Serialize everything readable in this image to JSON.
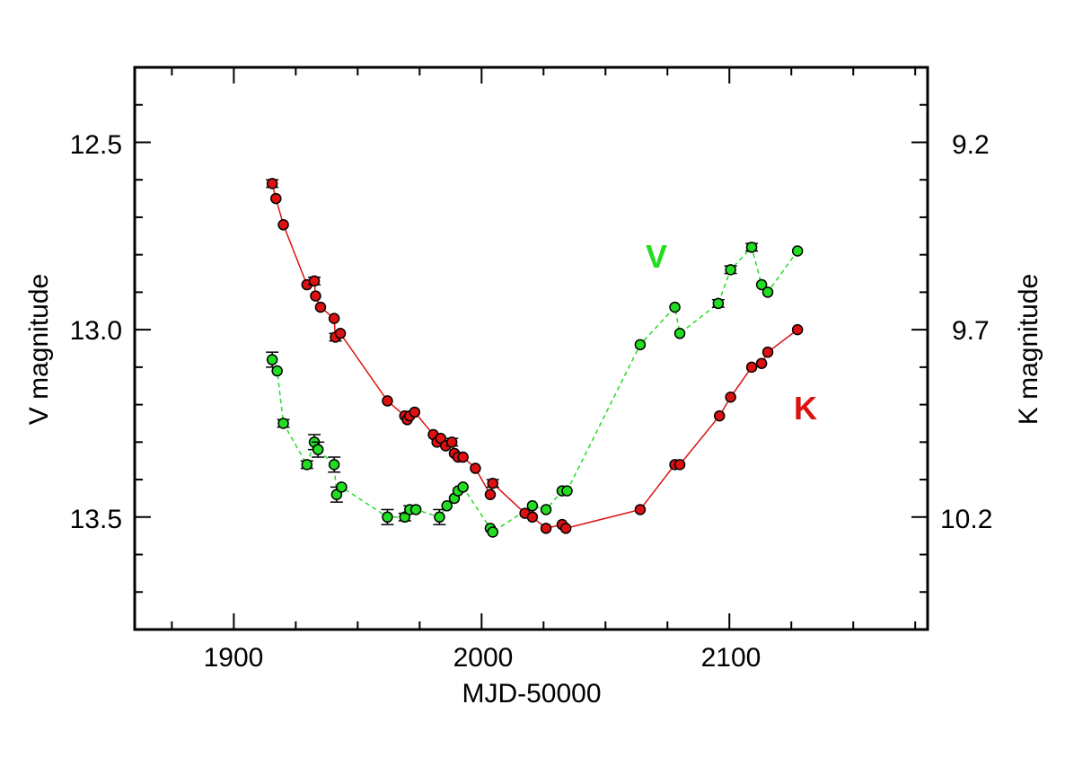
{
  "chart_data": {
    "type": "scatter",
    "title": "",
    "xlabel": "MJD-50000",
    "ylabel_left": "V magnitude",
    "ylabel_right": "K magnitude",
    "xlim": [
      1860,
      2180
    ],
    "ylim_left": [
      12.3,
      13.8
    ],
    "ylim_left_inverted": true,
    "ylim_right": [
      9.0,
      10.5
    ],
    "ylim_right_inverted": true,
    "x_ticks": [
      1900,
      2000,
      2100
    ],
    "x_tick_labels": [
      "1900",
      "2000",
      "2100"
    ],
    "y_left_ticks": [
      12.5,
      13.0,
      13.5
    ],
    "y_left_tick_labels": [
      "12.5",
      "13.0",
      "13.5"
    ],
    "y_right_ticks": [
      9.2,
      9.7,
      10.2
    ],
    "y_right_tick_labels": [
      "9.2",
      "9.7",
      "10.2"
    ],
    "grid": false,
    "colors": {
      "V": "#22dd22",
      "K": "#dd1111",
      "marker_edge": "#000000"
    },
    "series": [
      {
        "name": "V",
        "axis": "left",
        "line_style": "dashed",
        "label_position": "upper-right",
        "points": [
          {
            "x": 1915.5,
            "y": 13.08,
            "err": 0.02
          },
          {
            "x": 1917.5,
            "y": 13.11,
            "err": 0.0
          },
          {
            "x": 1920.0,
            "y": 13.25,
            "err": 0.01
          },
          {
            "x": 1929.5,
            "y": 13.36,
            "err": 0.01
          },
          {
            "x": 1932.5,
            "y": 13.3,
            "err": 0.02
          },
          {
            "x": 1934.0,
            "y": 13.32,
            "err": 0.02
          },
          {
            "x": 1940.5,
            "y": 13.36,
            "err": 0.02
          },
          {
            "x": 1941.5,
            "y": 13.44,
            "err": 0.02
          },
          {
            "x": 1943.5,
            "y": 13.42,
            "err": 0.0
          },
          {
            "x": 1962.0,
            "y": 13.5,
            "err": 0.02
          },
          {
            "x": 1969.0,
            "y": 13.5,
            "err": 0.01
          },
          {
            "x": 1971.0,
            "y": 13.48,
            "err": 0.01
          },
          {
            "x": 1973.5,
            "y": 13.48,
            "err": 0.0
          },
          {
            "x": 1983.0,
            "y": 13.5,
            "err": 0.02
          },
          {
            "x": 1986.0,
            "y": 13.47,
            "err": 0.0
          },
          {
            "x": 1989.0,
            "y": 13.45,
            "err": 0.0
          },
          {
            "x": 1990.5,
            "y": 13.43,
            "err": 0.0
          },
          {
            "x": 1992.5,
            "y": 13.42,
            "err": 0.0
          },
          {
            "x": 2003.5,
            "y": 13.53,
            "err": 0.0
          },
          {
            "x": 2004.5,
            "y": 13.54,
            "err": 0.0
          },
          {
            "x": 2020.5,
            "y": 13.47,
            "err": 0.0
          },
          {
            "x": 2026.0,
            "y": 13.48,
            "err": 0.0
          },
          {
            "x": 2032.5,
            "y": 13.43,
            "err": 0.0
          },
          {
            "x": 2034.5,
            "y": 13.43,
            "err": 0.0
          },
          {
            "x": 2064.0,
            "y": 13.04,
            "err": 0.0
          },
          {
            "x": 2078.0,
            "y": 12.94,
            "err": 0.0
          },
          {
            "x": 2080.0,
            "y": 13.01,
            "err": 0.0
          },
          {
            "x": 2095.5,
            "y": 12.93,
            "err": 0.01
          },
          {
            "x": 2100.5,
            "y": 12.84,
            "err": 0.01
          },
          {
            "x": 2109.0,
            "y": 12.78,
            "err": 0.01
          },
          {
            "x": 2113.0,
            "y": 12.88,
            "err": 0.0
          },
          {
            "x": 2115.5,
            "y": 12.9,
            "err": 0.0
          },
          {
            "x": 2127.5,
            "y": 12.79,
            "err": 0.0
          }
        ]
      },
      {
        "name": "K",
        "axis": "right",
        "line_style": "solid",
        "label_position": "middle-right",
        "points": [
          {
            "x": 1915.5,
            "y": 9.31,
            "err": 0.01
          },
          {
            "x": 1917.0,
            "y": 9.35,
            "err": 0.0
          },
          {
            "x": 1920.0,
            "y": 9.42,
            "err": 0.0
          },
          {
            "x": 1929.5,
            "y": 9.58,
            "err": 0.0
          },
          {
            "x": 1932.5,
            "y": 9.57,
            "err": 0.01
          },
          {
            "x": 1933.0,
            "y": 9.61,
            "err": 0.0
          },
          {
            "x": 1935.0,
            "y": 9.64,
            "err": 0.0
          },
          {
            "x": 1940.5,
            "y": 9.67,
            "err": 0.0
          },
          {
            "x": 1941.0,
            "y": 9.72,
            "err": 0.01
          },
          {
            "x": 1943.0,
            "y": 9.71,
            "err": 0.0
          },
          {
            "x": 1962.0,
            "y": 9.89,
            "err": 0.0
          },
          {
            "x": 1969.0,
            "y": 9.93,
            "err": 0.0
          },
          {
            "x": 1970.0,
            "y": 9.94,
            "err": 0.0
          },
          {
            "x": 1971.0,
            "y": 9.93,
            "err": 0.0
          },
          {
            "x": 1973.0,
            "y": 9.92,
            "err": 0.0
          },
          {
            "x": 1980.5,
            "y": 9.98,
            "err": 0.0
          },
          {
            "x": 1982.0,
            "y": 10.0,
            "err": 0.0
          },
          {
            "x": 1983.5,
            "y": 9.99,
            "err": 0.0
          },
          {
            "x": 1985.5,
            "y": 10.01,
            "err": 0.0
          },
          {
            "x": 1988.0,
            "y": 10.0,
            "err": 0.01
          },
          {
            "x": 1989.0,
            "y": 10.03,
            "err": 0.0
          },
          {
            "x": 1990.5,
            "y": 10.04,
            "err": 0.0
          },
          {
            "x": 1992.5,
            "y": 10.04,
            "err": 0.0
          },
          {
            "x": 1997.5,
            "y": 10.07,
            "err": 0.0
          },
          {
            "x": 2003.5,
            "y": 10.14,
            "err": 0.0
          },
          {
            "x": 2004.5,
            "y": 10.11,
            "err": 0.01
          },
          {
            "x": 2017.5,
            "y": 10.19,
            "err": 0.0
          },
          {
            "x": 2020.5,
            "y": 10.2,
            "err": 0.0
          },
          {
            "x": 2026.0,
            "y": 10.23,
            "err": 0.0
          },
          {
            "x": 2032.5,
            "y": 10.22,
            "err": 0.0
          },
          {
            "x": 2034.0,
            "y": 10.23,
            "err": 0.0
          },
          {
            "x": 2064.0,
            "y": 10.18,
            "err": 0.0
          },
          {
            "x": 2078.0,
            "y": 10.06,
            "err": 0.0
          },
          {
            "x": 2080.0,
            "y": 10.06,
            "err": 0.0
          },
          {
            "x": 2096.0,
            "y": 9.93,
            "err": 0.0
          },
          {
            "x": 2100.5,
            "y": 9.88,
            "err": 0.0
          },
          {
            "x": 2109.0,
            "y": 9.8,
            "err": 0.0
          },
          {
            "x": 2113.0,
            "y": 9.79,
            "err": 0.0
          },
          {
            "x": 2115.5,
            "y": 9.76,
            "err": 0.0
          },
          {
            "x": 2127.5,
            "y": 9.7,
            "err": 0.0
          }
        ]
      }
    ]
  }
}
